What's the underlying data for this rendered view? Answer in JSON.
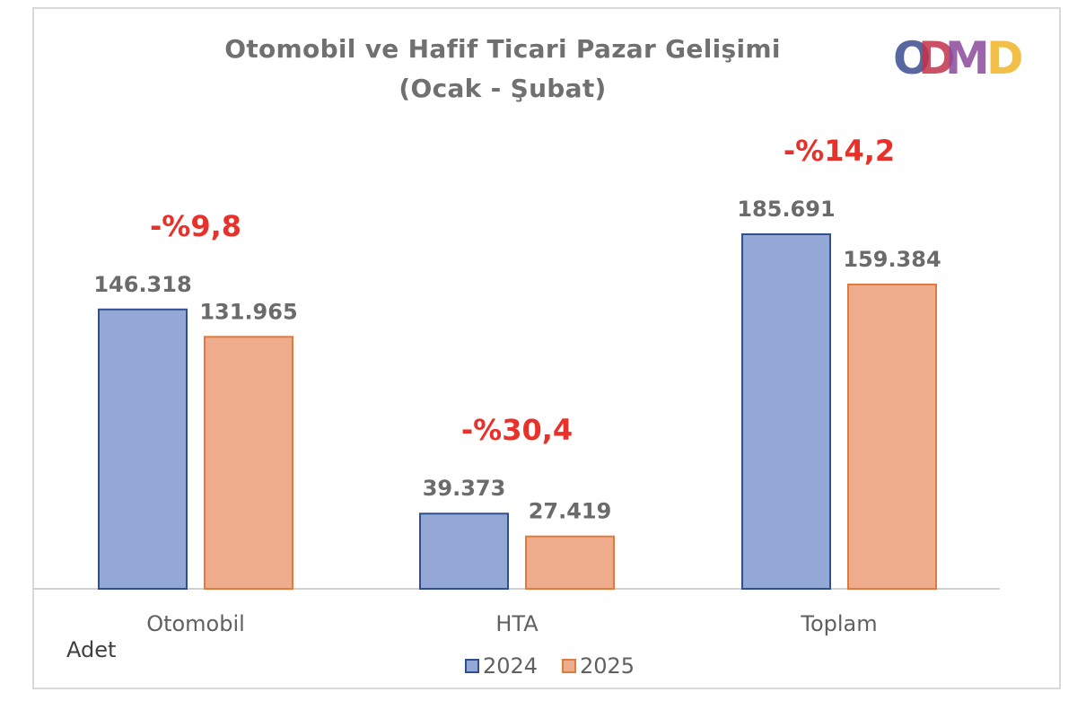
{
  "chart_data": {
    "type": "bar",
    "title": "Otomobil ve Hafif Ticari Pazar Gelişimi",
    "subtitle": "(Ocak - Şubat)",
    "unit_label": "Adet",
    "categories": [
      "Otomobil",
      "HTA",
      "Toplam"
    ],
    "series": [
      {
        "name": "2024",
        "values": [
          146318,
          39373,
          185691
        ],
        "labels": [
          "146.318",
          "39.373",
          "185.691"
        ],
        "fill": "#94a8d8",
        "stroke": "#2f4f8f"
      },
      {
        "name": "2025",
        "values": [
          131965,
          27419,
          159384
        ],
        "labels": [
          "131.965",
          "27.419",
          "159.384"
        ],
        "fill": "#eeac8c",
        "stroke": "#e07b3c"
      }
    ],
    "change_labels": [
      "-%9,8",
      "-%30,4",
      "-%14,2"
    ],
    "change_color": "#e8312a",
    "ylim": [
      0,
      200000
    ],
    "grid": false,
    "legend_position": "bottom"
  },
  "logo": {
    "letters": [
      "O",
      "D",
      "M",
      "D"
    ],
    "colors": [
      "#3b4d8f",
      "#c2334a",
      "#8b4a9c",
      "#f0b429"
    ]
  }
}
